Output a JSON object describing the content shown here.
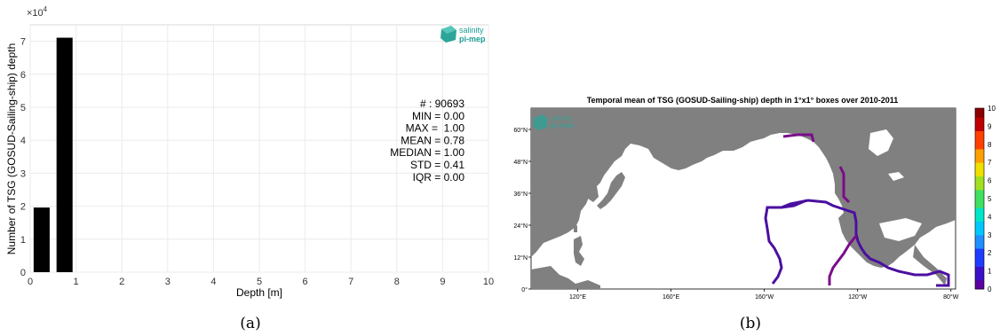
{
  "logo": {
    "line1": "salinity",
    "line2": "pi-mep"
  },
  "captions": {
    "a": "(a)",
    "b": "(b)"
  },
  "chart_data": [
    {
      "type": "bar",
      "x": [
        0.25,
        0.75
      ],
      "values": [
        19600,
        71093
      ],
      "bar_width": 0.35,
      "xlabel": "Depth [m]",
      "ylabel": "Number of TSG (GOSUD-Sailing-ship) depth",
      "xlim": [
        0,
        10
      ],
      "ylim": [
        0,
        75000
      ],
      "xticks": [
        "0",
        "1",
        "2",
        "3",
        "4",
        "5",
        "6",
        "7",
        "8",
        "9",
        "10"
      ],
      "yticks": [
        "0",
        "1",
        "2",
        "3",
        "4",
        "5",
        "6",
        "7"
      ],
      "y_multiplier": "×10",
      "y_multiplier_exp": "4",
      "grid": true,
      "bar_color": "#000000",
      "stats": [
        "# : 90693",
        "MIN = 0.00",
        "MAX =  1.00",
        "MEAN = 0.78",
        "MEDIAN = 1.00",
        "STD = 0.41",
        "IQR = 0.00"
      ]
    },
    {
      "type": "heatmap",
      "title": "Temporal mean of TSG (GOSUD-Sailing-ship) depth in 1°x1° boxes over 2010-2011",
      "lon_ticks": [
        "120°E",
        "160°E",
        "160°W",
        "120°W",
        "80°W"
      ],
      "lat_ticks": [
        "0°",
        "12°N",
        "24°N",
        "36°N",
        "48°N",
        "60°N"
      ],
      "colorbar_ticks": [
        "0",
        "1",
        "2",
        "3",
        "4",
        "5",
        "6",
        "7",
        "8",
        "9",
        "10"
      ],
      "colorbar_range": [
        0,
        10
      ],
      "land_color": "#808080",
      "ocean_color": "#ffffff",
      "tracks": [
        {
          "value": 1,
          "color": "#4b0fa0",
          "desc": "ship track at ~1 m depth"
        },
        {
          "value": 0,
          "color": "#7a0d8a",
          "desc": "ship track at ~0 m depth"
        }
      ]
    }
  ]
}
